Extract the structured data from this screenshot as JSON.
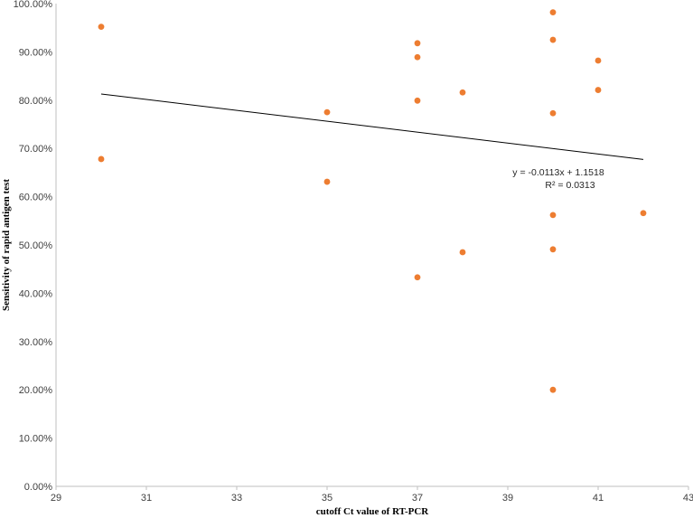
{
  "chart_data": {
    "type": "scatter",
    "xlabel": "cutoff Ct value of RT-PCR",
    "ylabel": "Sensitivity of rapid antigen test",
    "xlim": [
      29,
      43
    ],
    "ylim": [
      0,
      1
    ],
    "x_ticks": [
      "29",
      "31",
      "33",
      "35",
      "37",
      "39",
      "41",
      "43"
    ],
    "x_tick_values": [
      29,
      31,
      33,
      35,
      37,
      39,
      41,
      43
    ],
    "y_ticks": [
      "0.00%",
      "10.00%",
      "20.00%",
      "30.00%",
      "40.00%",
      "50.00%",
      "60.00%",
      "70.00%",
      "80.00%",
      "90.00%",
      "100.00%"
    ],
    "y_tick_values": [
      0,
      0.1,
      0.2,
      0.3,
      0.4,
      0.5,
      0.6,
      0.7,
      0.8,
      0.9,
      1.0
    ],
    "grid": false,
    "legend": "none",
    "marker_color": "#ED7D31",
    "trendline_color": "#000000",
    "series": [
      {
        "x": [
          30,
          30,
          35,
          35,
          37,
          37,
          37,
          37,
          38,
          38,
          40,
          40,
          40,
          40,
          40,
          40,
          41,
          41,
          42
        ],
        "y": [
          0.952,
          0.678,
          0.775,
          0.631,
          0.918,
          0.889,
          0.799,
          0.433,
          0.816,
          0.485,
          0.982,
          0.925,
          0.773,
          0.562,
          0.491,
          0.2,
          0.882,
          0.821,
          0.566
        ]
      }
    ],
    "trendline": {
      "slope": -0.0113,
      "intercept": 1.1518,
      "x_range": [
        30,
        42
      ],
      "equation": "y = -0.0113x + 1.1518",
      "r_squared": "R² = 0.0313"
    }
  }
}
